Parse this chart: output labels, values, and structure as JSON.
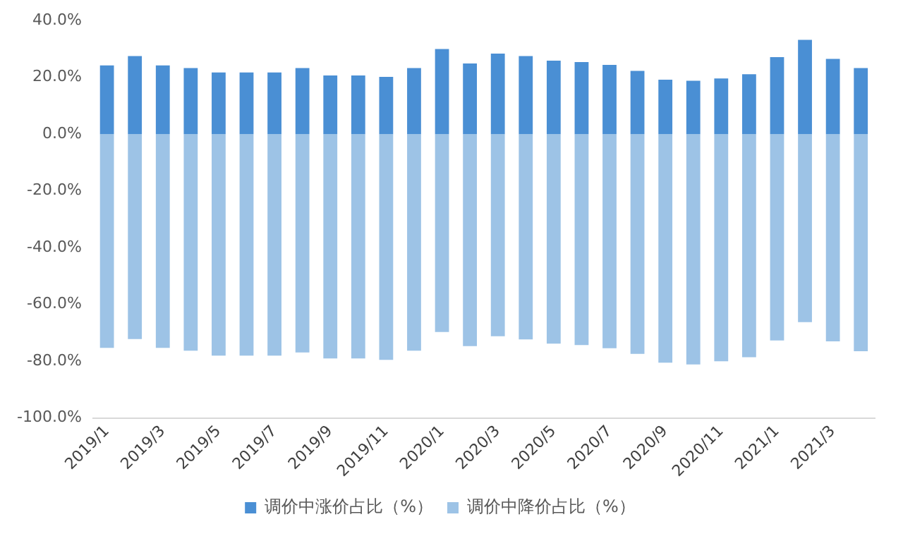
{
  "chart_data": {
    "type": "bar",
    "stacked": true,
    "categories": [
      "2019/1",
      null,
      "2019/3",
      null,
      "2019/5",
      null,
      "2019/7",
      null,
      "2019/9",
      null,
      "2019/11",
      null,
      "2020/1",
      null,
      "2020/3",
      null,
      "2020/5",
      null,
      "2020/7",
      null,
      "2020/9",
      null,
      "2020/11",
      null,
      "2021/1",
      null,
      "2021/3",
      null
    ],
    "series": [
      {
        "name": "调价中涨价占比（%）",
        "color": "#4a8fd4",
        "values": [
          24.2,
          27.5,
          24.2,
          23.3,
          21.7,
          21.7,
          21.7,
          23.3,
          20.7,
          20.7,
          20.2,
          23.3,
          30.0,
          24.9,
          28.4,
          27.5,
          25.9,
          25.4,
          24.4,
          22.3,
          19.2,
          18.8,
          19.6,
          21.1,
          27.1,
          33.2,
          26.5,
          23.3
        ]
      },
      {
        "name": "调价中降价占比（%）",
        "color": "#9dc3e6",
        "values": [
          -75.3,
          -72.2,
          -75.3,
          -76.3,
          -78.0,
          -78.0,
          -78.0,
          -76.9,
          -79.0,
          -79.0,
          -79.5,
          -76.3,
          -69.7,
          -74.7,
          -71.2,
          -72.3,
          -73.8,
          -74.3,
          -75.4,
          -77.4,
          -80.5,
          -81.1,
          -80.0,
          -78.6,
          -72.7,
          -66.2,
          -73.0,
          -76.5
        ]
      }
    ],
    "ylim": [
      -100,
      40
    ],
    "yticks": [
      {
        "value": -100,
        "label": "-100.0%"
      },
      {
        "value": -80,
        "label": "-80.0%"
      },
      {
        "value": -60,
        "label": "-60.0%"
      },
      {
        "value": -40,
        "label": "-40.0%"
      },
      {
        "value": -20,
        "label": "-20.0%"
      },
      {
        "value": 0,
        "label": "0.0%"
      },
      {
        "value": 20,
        "label": "20.0%"
      },
      {
        "value": 40,
        "label": "40.0%"
      }
    ],
    "grid": false,
    "legend": "bottom"
  }
}
